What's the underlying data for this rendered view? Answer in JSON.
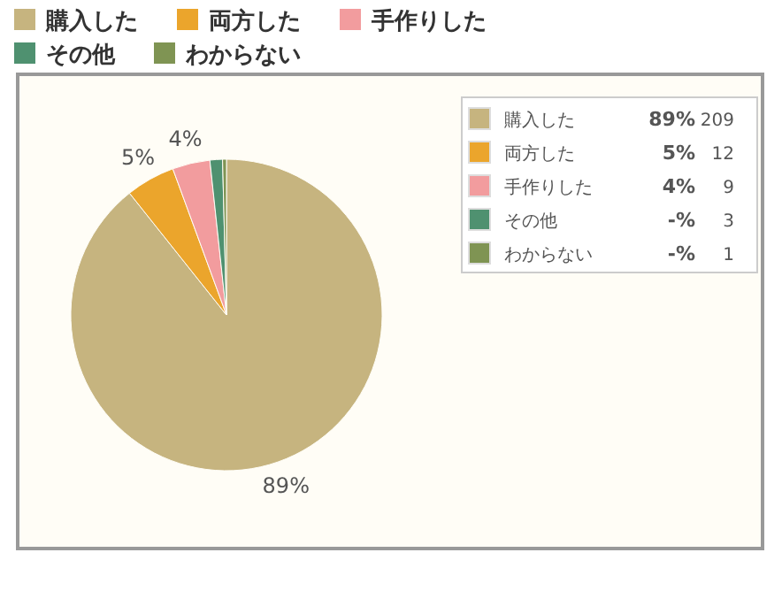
{
  "chart_data": [
    {
      "type": "pie",
      "categories": [
        "購入した",
        "両方した",
        "手作りした",
        "その他",
        "わからない"
      ],
      "values": [
        89.3,
        5.1,
        3.9,
        1.3,
        0.4
      ],
      "colors": [
        "#c6b47f",
        "#eba52c",
        "#f29c9e",
        "#4f9170",
        "#7f9453"
      ],
      "value_labels": [
        "89%",
        "5%",
        "4%",
        null,
        null
      ],
      "legend": "top"
    },
    {
      "type": "other",
      "categories": [
        "購入した",
        "両方した",
        "手作りした",
        "その他",
        "わからない"
      ],
      "colors": [
        "#c6b47f",
        "#eba52c",
        "#f29c9e",
        "#4f9170",
        "#7f9453"
      ],
      "annotations": [
        "89%",
        "209",
        "5%",
        "12",
        "4%",
        "9",
        "-%",
        "3",
        "-%",
        "1"
      ]
    }
  ]
}
